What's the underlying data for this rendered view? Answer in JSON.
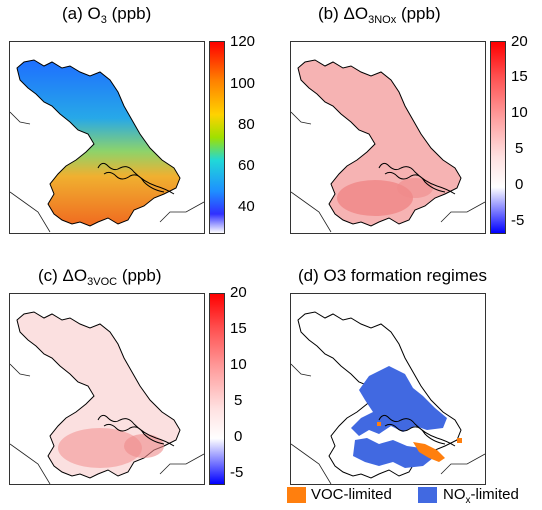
{
  "panels": {
    "a": {
      "title_pre": "(a) O",
      "title_sub": "3",
      "title_post": " (ppb)",
      "colorbar": {
        "ticks": [
          "120",
          "100",
          "80",
          "60",
          "40"
        ],
        "colors": [
          "#ff0000",
          "#ff8000",
          "#ffd200",
          "#9fe000",
          "#20d8d8",
          "#1e90ff",
          "#3030ff",
          "#ffffff"
        ]
      }
    },
    "b": {
      "title_pre": "(b) ΔO",
      "title_sub": "3NOx",
      "title_post": " (ppb)",
      "colorbar": {
        "ticks": [
          "20",
          "15",
          "10",
          "5",
          "0",
          "-5"
        ],
        "colors": [
          "#ff0000",
          "#ff7070",
          "#ffd0d0",
          "#ffffff",
          "#6060ff",
          "#0000ff"
        ]
      }
    },
    "c": {
      "title_pre": "(c) ΔO",
      "title_sub": "3VOC",
      "title_post": " (ppb)",
      "colorbar": {
        "ticks": [
          "20",
          "15",
          "10",
          "5",
          "0",
          "-5"
        ],
        "colors": [
          "#ff0000",
          "#ff7070",
          "#ffd0d0",
          "#ffffff",
          "#6060ff",
          "#0000ff"
        ]
      }
    },
    "d": {
      "title": "(d) O3 formation regimes"
    }
  },
  "legend": {
    "voc_label": "VOC-limited",
    "nox_label_pre": "NO",
    "nox_label_sub": "x",
    "nox_label_post": "-limited",
    "voc_color": "#ff7f0e",
    "nox_color": "#4169e1"
  }
}
